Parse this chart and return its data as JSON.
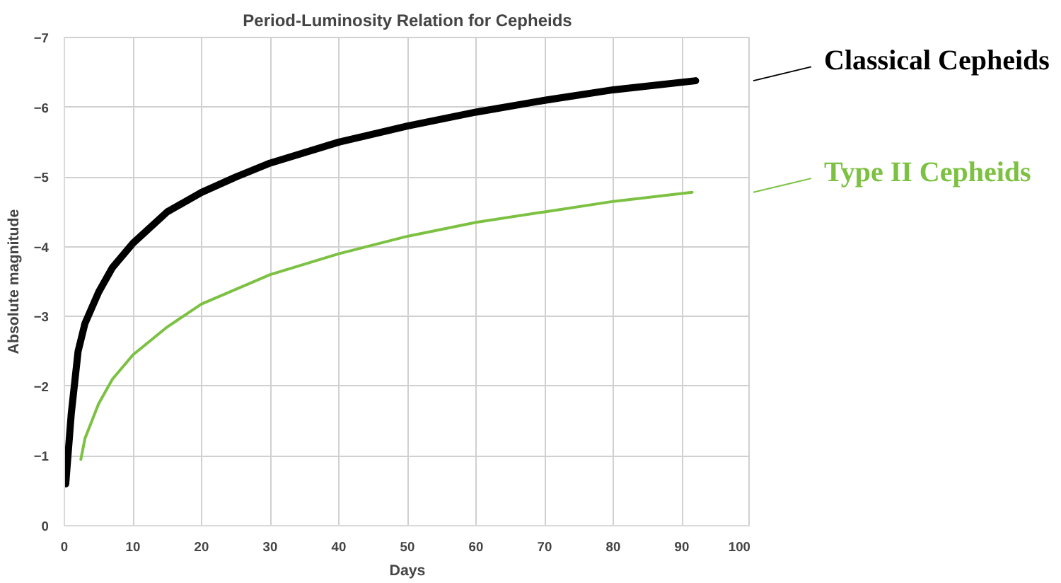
{
  "chart_data": {
    "type": "line",
    "title": "Period-Luminosity Relation for Cepheids",
    "xlabel": "Days",
    "ylabel": "Absolute magnitude",
    "xlim": [
      0,
      100
    ],
    "xticks": [
      0,
      10,
      20,
      30,
      40,
      50,
      60,
      70,
      80,
      90,
      100
    ],
    "ylim": [
      0,
      -7
    ],
    "yticks": [
      0,
      -1,
      -2,
      -3,
      -4,
      -5,
      -6,
      -7
    ],
    "grid": true,
    "legend": "right",
    "series": [
      {
        "name": "Classical Cepheids",
        "color": "#000000",
        "x": [
          0.2,
          1,
          2,
          3,
          5,
          7,
          10,
          15,
          20,
          25,
          30,
          40,
          50,
          60,
          70,
          80,
          92
        ],
        "values": [
          -0.6,
          -1.6,
          -2.5,
          -2.9,
          -3.35,
          -3.7,
          -4.05,
          -4.5,
          -4.78,
          -5.0,
          -5.2,
          -5.5,
          -5.73,
          -5.93,
          -6.1,
          -6.25,
          -6.38
        ]
      },
      {
        "name": "Type II Cepheids",
        "color": "#7cc142",
        "x": [
          2.4,
          3,
          5,
          7,
          10,
          15,
          20,
          30,
          40,
          50,
          60,
          70,
          80,
          91.5
        ],
        "values": [
          -0.95,
          -1.25,
          -1.75,
          -2.1,
          -2.45,
          -2.85,
          -3.18,
          -3.6,
          -3.9,
          -4.15,
          -4.35,
          -4.5,
          -4.65,
          -4.78
        ]
      }
    ]
  }
}
